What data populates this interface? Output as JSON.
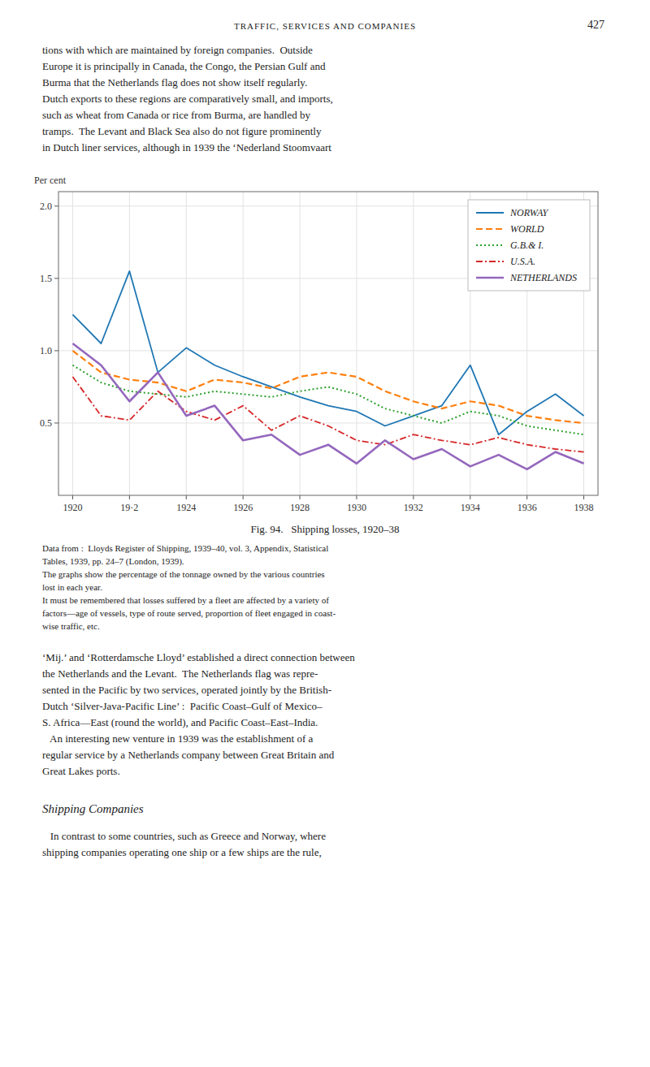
{
  "header": "TRAFFIC, SERVICES AND COMPANIES",
  "page_number": "427",
  "text_top": "tions with which are maintained by foreign companies.  Outside\nEurope it is principally in Canada, the Congo, the Persian Gulf and\nBurma that the Netherlands flag does not show itself regularly.\nDutch exports to these regions are comparatively small, and imports,\nsuch as wheat from Canada or rice from Burma, are handled by\ntramps.  The Levant and Black Sea also do not figure prominently\nin Dutch liner services, although in 1939 the ‘Nederland Stoomvaart",
  "caption": [
    "Data from :  Lloyds Register of Shipping, 1939–40, vol. 3, Appendix, Statistical",
    "Tables, 1939, pp. 24–7 (London, 1939).",
    "The graphs show the percentage of the tonnage owned by the various countries",
    "lost in each year.",
    "It must be remembered that losses suffered by a fleet are affected by a variety of",
    "factors—age of vessels, type of route served, proportion of fleet engaged in coast-",
    "wise traffic, etc."
  ],
  "text_bottom": "‘Mij.’ and ‘Rotterdamsche Lloyd’ established a direct connection between\nthe Netherlands and the Levant.  The Netherlands flag was repre-\nsented in the Pacific by two services, operated jointly by the British-\nDutch ‘Silver-Java-Pacific Line’ :  Pacific Coast–Gulf of Mexico–\nS. Africa—East (round the world), and Pacific Coast–East–India.\n   An interesting new venture in 1939 was the establishment of a\nregular service by a Netherlands company between Great Britain and\nGreat Lakes ports.",
  "heading": "Shipping Companies",
  "text_last": "   In contrast to some countries, such as Greece and Norway, where\nshipping companies operating one ship or a few ships are the rule,",
  "chart_data": {
    "type": "line",
    "title": "Fig. 94.   Shipping losses, 1920–38",
    "y_label": "Per cent",
    "x": [
      1920,
      1921,
      1922,
      1923,
      1924,
      1925,
      1926,
      1927,
      1928,
      1929,
      1930,
      1931,
      1932,
      1933,
      1934,
      1935,
      1936,
      1937,
      1938
    ],
    "series": [
      {
        "name": "NORWAY",
        "line_style": "solid",
        "values": [
          1.25,
          1.05,
          1.55,
          0.85,
          1.02,
          0.9,
          0.82,
          0.75,
          0.68,
          0.62,
          0.58,
          0.48,
          0.55,
          0.62,
          0.9,
          0.42,
          0.58,
          0.7,
          0.55
        ]
      },
      {
        "name": "WORLD",
        "line_style": "dashed",
        "values": [
          1.0,
          0.85,
          0.8,
          0.78,
          0.72,
          0.8,
          0.78,
          0.74,
          0.82,
          0.85,
          0.82,
          0.72,
          0.65,
          0.6,
          0.65,
          0.62,
          0.55,
          0.52,
          0.5
        ]
      },
      {
        "name": "G.B.& I.",
        "line_style": "dotted",
        "values": [
          0.9,
          0.78,
          0.72,
          0.7,
          0.68,
          0.72,
          0.7,
          0.68,
          0.72,
          0.75,
          0.7,
          0.6,
          0.55,
          0.5,
          0.58,
          0.55,
          0.48,
          0.45,
          0.42
        ]
      },
      {
        "name": "U.S.A.",
        "line_style": "dashdot",
        "values": [
          0.82,
          0.55,
          0.52,
          0.72,
          0.58,
          0.52,
          0.62,
          0.45,
          0.55,
          0.48,
          0.38,
          0.35,
          0.42,
          0.38,
          0.35,
          0.4,
          0.35,
          0.32,
          0.3
        ]
      },
      {
        "name": "NETHERLANDS",
        "line_style": "solid",
        "values": [
          1.05,
          0.9,
          0.65,
          0.85,
          0.55,
          0.62,
          0.38,
          0.42,
          0.28,
          0.35,
          0.22,
          0.38,
          0.25,
          0.32,
          0.2,
          0.28,
          0.18,
          0.3,
          0.22
        ]
      }
    ],
    "xlim": [
      1919.5,
      1938.5
    ],
    "xticks": [
      1920,
      {
        "value": 1922,
        "label": "19·2"
      },
      1924,
      1926,
      1928,
      1930,
      1932,
      1934,
      1936,
      1938
    ],
    "ylim": [
      0,
      2.1
    ],
    "yticks": [
      0.5,
      {
        "value": 1.0,
        "label": "1.0"
      },
      1.5,
      {
        "value": 2.0,
        "label": "2.0"
      }
    ],
    "grid": true,
    "legend": "upper right"
  }
}
